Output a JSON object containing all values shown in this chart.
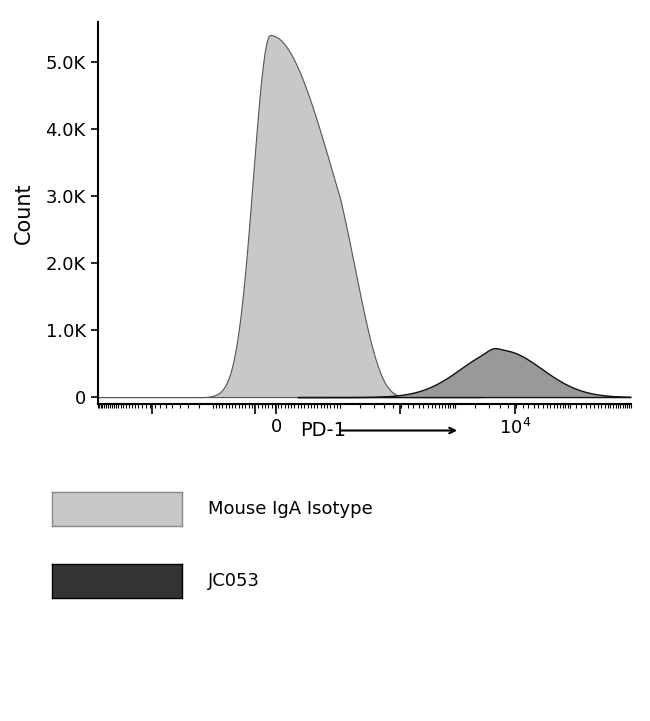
{
  "ylabel": "Count",
  "xlabel": "PD-1",
  "ylim": [
    -100,
    5600
  ],
  "yticks": [
    0,
    1000,
    2000,
    3000,
    4000,
    5000
  ],
  "ytick_labels": [
    "0",
    "1.0K",
    "2.0K",
    "3.0K",
    "4.0K",
    "5.0K"
  ],
  "background_color": "#ffffff",
  "isotype_fill_color": "#c8c8c8",
  "isotype_line_color": "#555555",
  "jc053_fill_color": "#999999",
  "jc053_line_color": "#111111",
  "legend_labels": [
    "Mouse IgA Isotype",
    "JC053"
  ],
  "legend_isotype_color": "#c8c8c8",
  "legend_isotype_edge": "#888888",
  "legend_jc053_color": "#333333",
  "legend_jc053_edge": "#000000"
}
